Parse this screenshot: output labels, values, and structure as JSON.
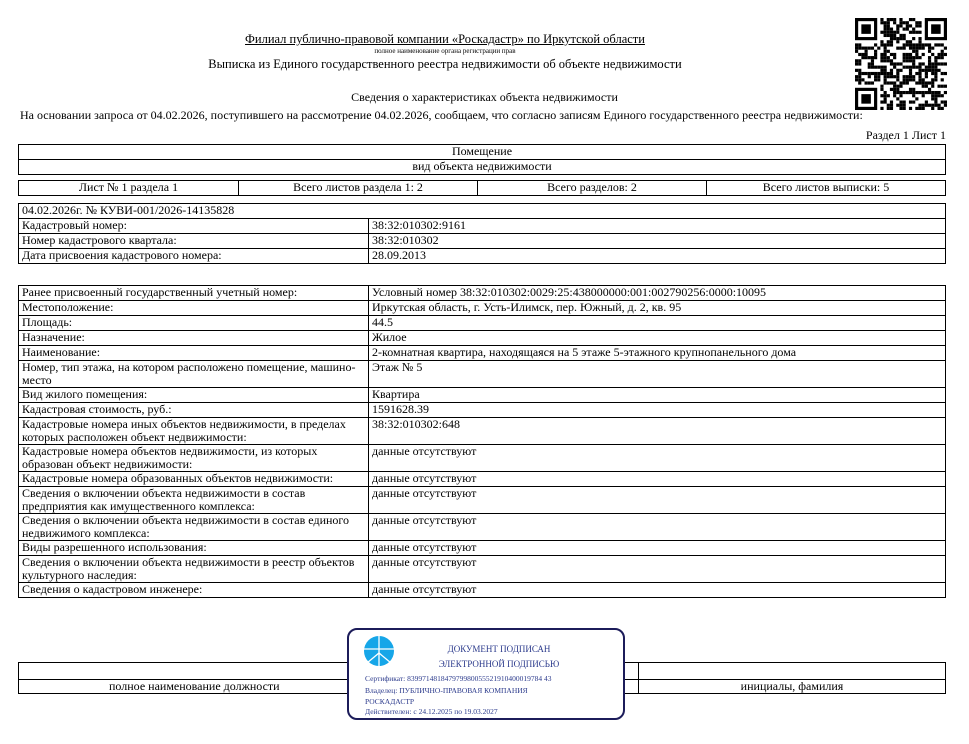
{
  "header": {
    "org_name": "Филиал публично-правовой компании «Роскадастр» по Иркутской области",
    "org_caption": "полное наименование органа регистрации прав",
    "doc_title": "Выписка из Единого государственного реестра недвижимости об объекте недвижимости",
    "section_title": "Сведения о характеристиках объекта недвижимости",
    "intro": "На  основании запроса от 04.02.2026, поступившего на рассмотрение 04.02.2026, сообщаем, что согласно записям Единого государственного реестра недвижимости:",
    "page_ref": "Раздел 1 Лист 1"
  },
  "object": {
    "type": "Помещение",
    "type_caption": "вид объекта недвижимости"
  },
  "sheet_info": [
    "Лист № 1 раздела 1",
    "Всего листов раздела 1: 2",
    "Всего разделов: 2",
    "Всего листов выписки: 5"
  ],
  "record_id": "04.02.2026г. № КУВИ-001/2026-14135828",
  "basic": [
    [
      "Кадастровый номер:",
      "38:32:010302:9161"
    ],
    [
      "Номер кадастрового квартала:",
      "38:32:010302"
    ],
    [
      "Дата присвоения кадастрового номера:",
      "28.09.2013"
    ]
  ],
  "details": [
    [
      "Ранее присвоенный государственный учетный номер:",
      "Условный номер 38:32:010302:0029:25:438000000:001:002790256:0000:10095"
    ],
    [
      "Местоположение:",
      "Иркутская область, г. Усть-Илимск, пер. Южный, д. 2, кв. 95"
    ],
    [
      "Площадь:",
      "44.5"
    ],
    [
      "Назначение:",
      "Жилое"
    ],
    [
      "Наименование:",
      "2-комнатная квартира, находящаяся на 5 этаже 5-этажного крупнопанельного дома"
    ],
    [
      "Номер, тип этажа, на котором расположено помещение, машино-место",
      "Этаж № 5"
    ],
    [
      "Вид жилого помещения:",
      "Квартира"
    ],
    [
      "Кадастровая стоимость, руб.:",
      "1591628.39"
    ],
    [
      "Кадастровые номера иных объектов недвижимости, в пределах которых расположен объект недвижимости:",
      "38:32:010302:648"
    ],
    [
      "Кадастровые номера объектов недвижимости, из которых образован объект недвижимости:",
      "данные отсутствуют"
    ],
    [
      "Кадастровые номера образованных объектов недвижимости:",
      "данные отсутствуют"
    ],
    [
      "Сведения о включении объекта недвижимости в состав предприятия как имущественного комплекса:",
      "данные отсутствуют"
    ],
    [
      "Сведения о включении объекта недвижимости в состав единого недвижимого комплекса:",
      "данные отсутствуют"
    ],
    [
      "Виды разрешенного использования:",
      "данные отсутствуют"
    ],
    [
      "Сведения о включении объекта недвижимости в реестр объектов культурного наследия:",
      "данные отсутствуют"
    ],
    [
      "Сведения о кадастровом инженере:",
      "данные отсутствуют"
    ]
  ],
  "signature": {
    "position_caption": "полное наименование должности",
    "name_caption": "инициалы, фамилия"
  },
  "stamp": {
    "line1": "ДОКУМЕНТ ПОДПИСАН",
    "line2": "ЭЛЕКТРОННОЙ ПОДПИСЬЮ",
    "certificate": "Сертификат: 839971481847979980055521910400019784 43",
    "owner": "Владелец: ПУБЛИЧНО-ПРАВОВАЯ КОМПАНИЯ",
    "owner2": "РОСКАДАСТР",
    "valid": "Действителен: с 24.12.2025 по 19.03.2027",
    "color": "#2b3a8c"
  }
}
